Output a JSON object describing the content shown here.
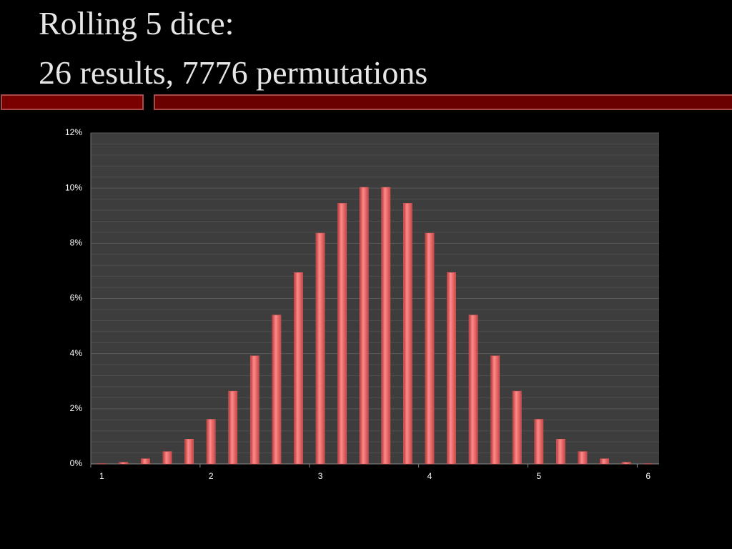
{
  "title_lines": [
    "Rolling 5 dice:",
    "26 results, 7776 permutations"
  ],
  "chart_data": {
    "type": "bar",
    "categories": [
      "1",
      null,
      null,
      null,
      null,
      "2",
      null,
      null,
      null,
      null,
      "3",
      null,
      null,
      null,
      null,
      "4",
      null,
      null,
      null,
      null,
      "5",
      null,
      null,
      null,
      null,
      "6"
    ],
    "values": [
      0.01,
      0.06,
      0.19,
      0.45,
      0.9,
      1.62,
      2.64,
      3.92,
      5.4,
      6.94,
      8.37,
      9.45,
      10.03,
      10.03,
      9.45,
      8.37,
      6.94,
      5.4,
      3.92,
      2.64,
      1.62,
      0.9,
      0.45,
      0.19,
      0.06,
      0.01
    ],
    "color": "#e85a5a",
    "ylim": [
      0,
      12
    ],
    "yticks": [
      {
        "value": 0,
        "label": "0%"
      },
      {
        "value": 2,
        "label": "2%"
      },
      {
        "value": 4,
        "label": "4%"
      },
      {
        "value": 6,
        "label": "6%"
      },
      {
        "value": 8,
        "label": "8%"
      },
      {
        "value": 10,
        "label": "10%"
      },
      {
        "value": 12,
        "label": "12%"
      }
    ],
    "grid": true
  }
}
